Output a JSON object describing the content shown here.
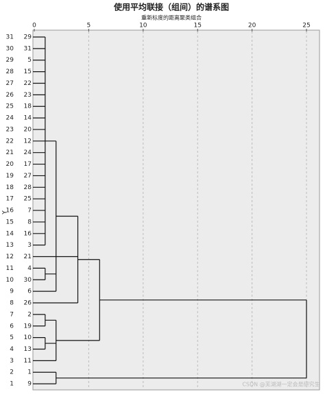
{
  "chart_data": {
    "type": "dendrogram",
    "title": "使用平均联接（组间）的谱系图",
    "subtitle": "重新标度的距离聚类组合",
    "y_label": "Y",
    "watermark": "CSDN @芜湖湖一定会是研究生",
    "row_labels": [
      "31",
      "30",
      "29",
      "28",
      "27",
      "26",
      "25",
      "24",
      "23",
      "22",
      "21",
      "20",
      "19",
      "18",
      "17",
      "16",
      "15",
      "14",
      "13",
      "12",
      "11",
      "10",
      "9",
      "8",
      "7",
      "6",
      "5",
      "4",
      "3",
      "2",
      "1"
    ],
    "case_labels": [
      "29",
      "31",
      "5",
      "15",
      "22",
      "23",
      "18",
      "14",
      "20",
      "12",
      "24",
      "17",
      "27",
      "28",
      "25",
      "7",
      "8",
      "16",
      "3",
      "21",
      "4",
      "30",
      "6",
      "26",
      "2",
      "19",
      "10",
      "13",
      "11",
      "1",
      "9"
    ],
    "xlim": [
      0,
      25
    ],
    "xticks": [
      0,
      5,
      10,
      15,
      20,
      25
    ],
    "grid": true,
    "tree": {
      "height": 25,
      "children": [
        {
          "height": 6,
          "children": [
            {
              "height": 4,
              "children": [
                19,
                {
                  "height": 2,
                  "children": [
                    {
                      "height": 1,
                      "children": [
                        0,
                        1,
                        2,
                        3,
                        4,
                        5,
                        6,
                        7,
                        8,
                        9,
                        10,
                        11,
                        12,
                        13,
                        14,
                        15,
                        16,
                        17,
                        18
                      ]
                    },
                    {
                      "height": 1,
                      "children": [
                        20,
                        21
                      ]
                    },
                    22
                  ]
                },
                23
              ]
            },
            {
              "height": 2,
              "children": [
                {
                  "height": 1,
                  "children": [
                    24,
                    25
                  ]
                },
                {
                  "height": 1,
                  "children": [
                    26,
                    27
                  ]
                },
                28
              ]
            }
          ]
        },
        {
          "height": 2,
          "children": [
            29,
            30
          ]
        }
      ]
    }
  }
}
